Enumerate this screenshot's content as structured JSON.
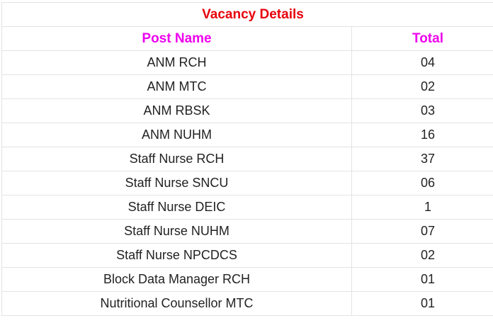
{
  "table": {
    "title": "Vacancy Details",
    "headers": {
      "post_name": "Post Name",
      "total": "Total"
    },
    "rows": [
      {
        "post": "ANM RCH",
        "total": "04"
      },
      {
        "post": "ANM MTC",
        "total": "02"
      },
      {
        "post": "ANM RBSK",
        "total": "03"
      },
      {
        "post": "ANM NUHM",
        "total": "16"
      },
      {
        "post": "Staff Nurse RCH",
        "total": "37"
      },
      {
        "post": "Staff Nurse SNCU",
        "total": "06"
      },
      {
        "post": "Staff Nurse DEIC",
        "total": "1"
      },
      {
        "post": "Staff Nurse NUHM",
        "total": "07"
      },
      {
        "post": "Staff Nurse NPCDCS",
        "total": "02"
      },
      {
        "post": "Block Data Manager RCH",
        "total": "01"
      },
      {
        "post": "Nutritional Counsellor MTC",
        "total": "01"
      }
    ],
    "colors": {
      "title": "#e8000b",
      "header": "#ee00ee"
    }
  }
}
